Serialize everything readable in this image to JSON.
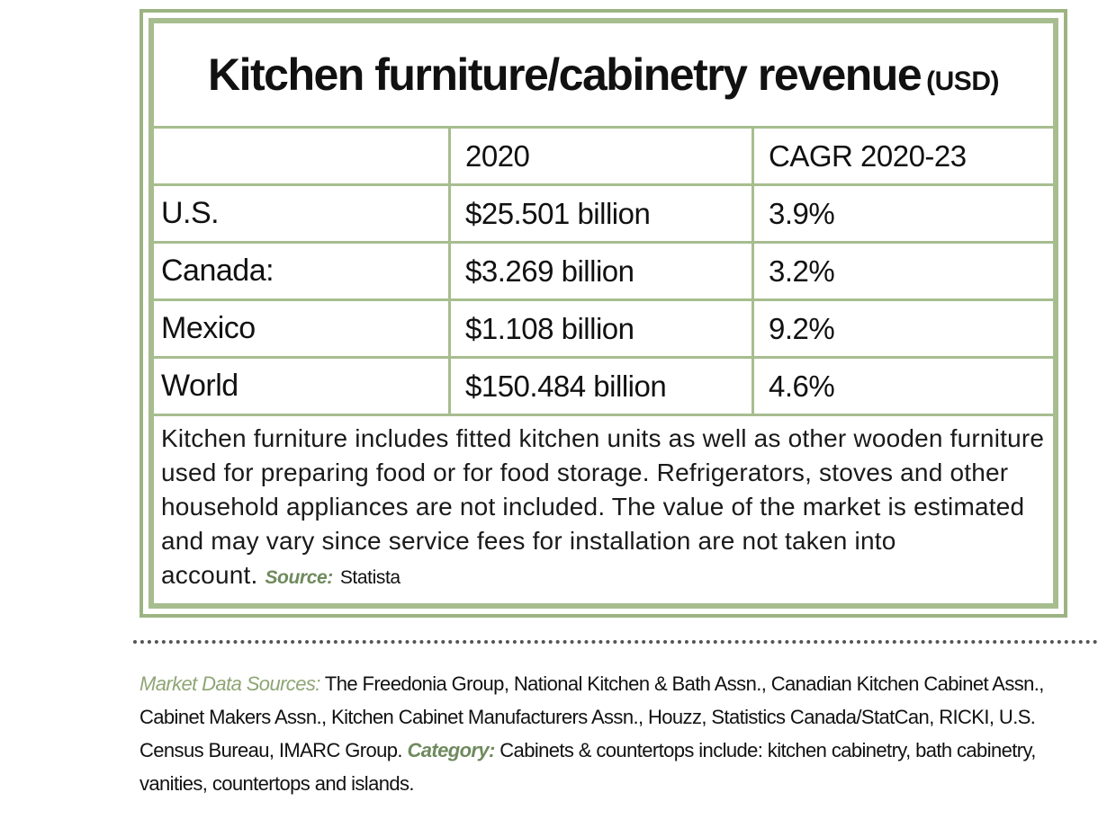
{
  "table": {
    "title": "Kitchen furniture/cabinetry revenue",
    "title_unit": "(USD)",
    "columns": [
      "",
      "2020",
      "CAGR 2020-23"
    ],
    "rows": [
      {
        "region": "U.S.",
        "revenue_2020": "$25.501 billion",
        "cagr": "3.9%"
      },
      {
        "region": "Canada:",
        "revenue_2020": "$3.269 billion",
        "cagr": "3.2%"
      },
      {
        "region": "Mexico",
        "revenue_2020": "$1.108 billion",
        "cagr": "9.2%"
      },
      {
        "region": "World",
        "revenue_2020": "$150.484 billion",
        "cagr": "4.6%"
      }
    ],
    "note": "Kitchen furniture includes fitted kitchen units as well as other wooden furniture used for preparing food or for food storage. Refrigerators, stoves and other household appliances are not included. The value of the market is estimated and may vary since service fees for installation are not taken into account.",
    "source_label": "Source:",
    "source_value": "Statista"
  },
  "footer": {
    "sources_label": "Market Data Sources:",
    "sources_text": "The Freedonia Group, National Kitchen & Bath Assn., Canadian Kitchen Cabinet Assn., Cabinet Makers Assn., Kitchen Cabinet Manufacturers Assn., Houzz, Statistics Canada/StatCan, RICKI, U.S. Census Bureau, IMARC Group.",
    "category_label": "Category:",
    "category_text": "Cabinets & countertops include: kitchen cabinetry, bath cabinetry, vanities, countertops and islands."
  },
  "colors": {
    "frame_green": "#9cb482",
    "label_green": "#8ea574",
    "label_green_dark": "#6f8a5e"
  }
}
